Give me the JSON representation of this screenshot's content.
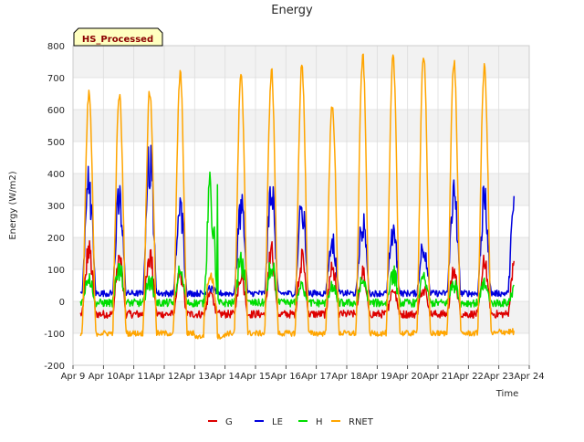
{
  "chart_data": {
    "type": "line",
    "title": "Energy",
    "xlabel": "Time",
    "ylabel": "Energy (W/m2)",
    "badge": "HS_Processed",
    "ylim": [
      -200,
      800
    ],
    "yticks": [
      -200,
      -100,
      0,
      100,
      200,
      300,
      400,
      500,
      600,
      700,
      800
    ],
    "ytick_labels": [
      "-200",
      "-100",
      "0",
      "100",
      "200",
      "300",
      "400",
      "500",
      "600",
      "700",
      "800"
    ],
    "xlim": [
      9,
      24
    ],
    "xticks": [
      9,
      10,
      11,
      12,
      13,
      14,
      15,
      16,
      17,
      18,
      19,
      20,
      21,
      22,
      23,
      24
    ],
    "xtick_labels": [
      "Apr 9",
      "Apr 10",
      "Apr 11",
      "Apr 12",
      "Apr 13",
      "Apr 14",
      "Apr 15",
      "Apr 16",
      "Apr 17",
      "Apr 18",
      "Apr 19",
      "Apr 20",
      "Apr 21",
      "Apr 22",
      "Apr 23",
      "Apr 24"
    ],
    "grid": true,
    "legend": "bottom-center",
    "x_start": 9.25,
    "x_end": 23.5,
    "samples_per_day": 48,
    "daily_peaks": {
      "dates": [
        "Apr 9",
        "Apr 10",
        "Apr 11",
        "Apr 12",
        "Apr 13",
        "Apr 14",
        "Apr 15",
        "Apr 16",
        "Apr 17",
        "Apr 18",
        "Apr 19",
        "Apr 20",
        "Apr 21",
        "Apr 22",
        "Apr 23"
      ],
      "RNET": [
        650,
        645,
        655,
        710,
        80,
        700,
        720,
        735,
        615,
        765,
        760,
        770,
        750,
        730,
        0
      ],
      "LE": [
        380,
        310,
        455,
        285,
        40,
        290,
        345,
        285,
        190,
        245,
        220,
        175,
        330,
        305,
        320
      ],
      "H": [
        90,
        120,
        80,
        100,
        365,
        140,
        120,
        60,
        50,
        70,
        100,
        80,
        70,
        60,
        50
      ],
      "G": [
        180,
        145,
        170,
        90,
        30,
        100,
        160,
        150,
        120,
        100,
        50,
        60,
        100,
        130,
        140
      ]
    },
    "series": [
      {
        "name": "G",
        "color": "#dd0000"
      },
      {
        "name": "LE",
        "color": "#0000dd"
      },
      {
        "name": "H",
        "color": "#00dd00"
      },
      {
        "name": "RNET",
        "color": "#ffa500"
      }
    ]
  }
}
